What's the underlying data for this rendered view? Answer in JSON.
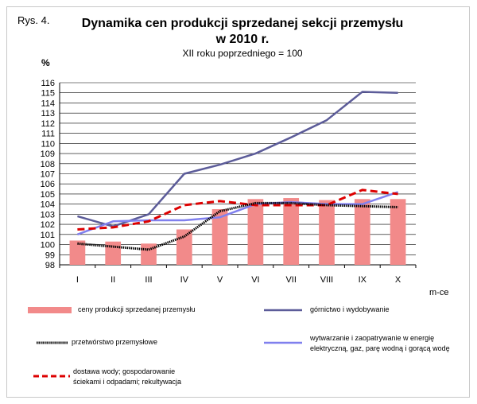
{
  "figure_label": "Rys. 4.",
  "chart_data": {
    "type": "bar",
    "title_line1": "Dynamika cen produkcji sprzedanej sekcji przemysłu",
    "title_line2": "w 2010 r.",
    "subtitle": "XII roku poprzedniego = 100",
    "ylabel": "%",
    "xlabel": "m-ce",
    "categories": [
      "I",
      "II",
      "III",
      "IV",
      "V",
      "VI",
      "VII",
      "VIII",
      "IX",
      "X"
    ],
    "ylim": [
      98,
      116
    ],
    "yticks": [
      98,
      99,
      100,
      101,
      102,
      103,
      104,
      105,
      106,
      107,
      108,
      109,
      110,
      111,
      112,
      113,
      114,
      115,
      116
    ],
    "grid": true,
    "legend_position": "bottom",
    "series": [
      {
        "name": "ceny produkcji sprzedanej przemysłu",
        "kind": "bar",
        "color": "#f28a8a",
        "values": [
          100.4,
          100.3,
          100.1,
          101.5,
          103.5,
          104.5,
          104.6,
          104.4,
          104.5,
          104.5
        ]
      },
      {
        "name": "górnictwo i wydobywanie",
        "kind": "line",
        "color": "#5c5c99",
        "values": [
          102.8,
          101.8,
          103.0,
          107.0,
          107.9,
          109.0,
          110.6,
          112.3,
          115.1,
          115.0
        ]
      },
      {
        "name": "przetwórstwo przemysłowe",
        "kind": "line-dotted",
        "color": "#000000",
        "values": [
          100.1,
          99.8,
          99.5,
          100.8,
          103.3,
          104.1,
          104.1,
          103.9,
          103.8,
          103.7
        ]
      },
      {
        "name": "wytwarzanie i zaopatrywanie w energię elektryczną, gaz, parę wodną i gorącą wodę",
        "name_line1": "wytwarzanie  i zaopatrywanie  w energię",
        "name_line2": "elektryczną,  gaz, parę wodną i gorącą wodę",
        "kind": "line",
        "color": "#8080ee",
        "values": [
          101.0,
          102.3,
          102.4,
          102.4,
          102.7,
          104.0,
          104.2,
          104.0,
          104.0,
          105.2
        ]
      },
      {
        "name": "dostawa wody; gospodarowanie ściekami i odpadami; rekultywacja",
        "name_line1": "dostawa wody; gospodarowanie",
        "name_line2": "ściekami i odpadami; rekultywacja",
        "kind": "line-dashed",
        "color": "#dd0000",
        "values": [
          101.5,
          101.7,
          102.3,
          103.9,
          104.3,
          103.9,
          103.9,
          103.9,
          105.4,
          105.0
        ]
      }
    ]
  }
}
